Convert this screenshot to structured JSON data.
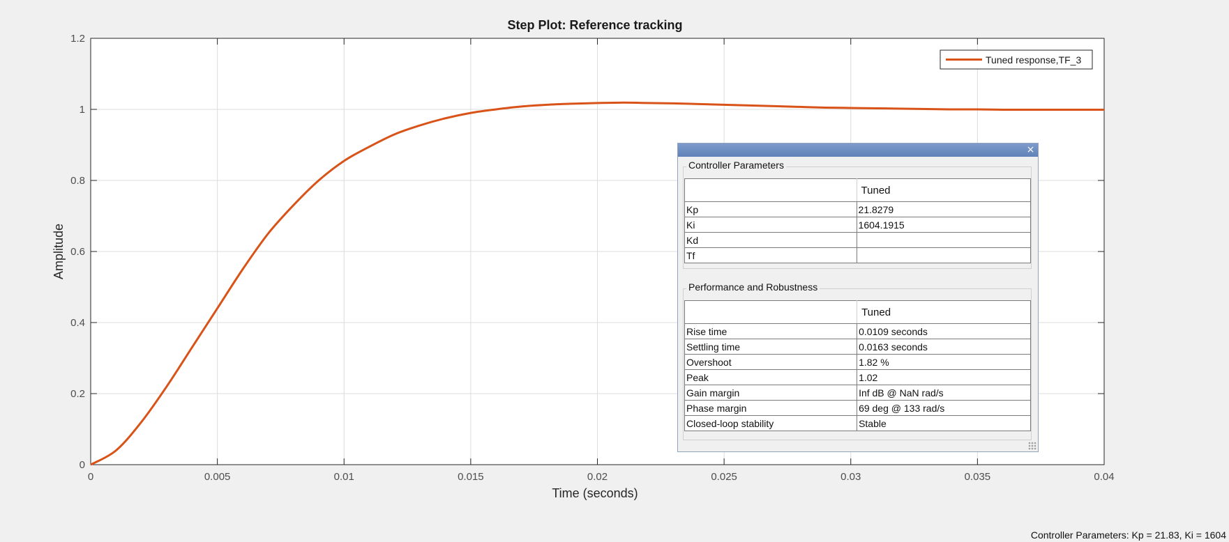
{
  "chart_data": {
    "type": "line",
    "title": "Step Plot: Reference tracking",
    "xlabel": "Time (seconds)",
    "ylabel": "Amplitude",
    "xlim": [
      0,
      0.04
    ],
    "ylim": [
      0,
      1.2
    ],
    "xticks": [
      0,
      0.005,
      0.01,
      0.015,
      0.02,
      0.025,
      0.03,
      0.035,
      0.04
    ],
    "xtick_labels": [
      "0",
      "0.005",
      "0.01",
      "0.015",
      "0.02",
      "0.025",
      "0.03",
      "0.035",
      "0.04"
    ],
    "yticks": [
      0,
      0.2,
      0.4,
      0.6,
      0.8,
      1,
      1.2
    ],
    "ytick_labels": [
      "0",
      "0.2",
      "0.4",
      "0.6",
      "0.8",
      "1",
      "1.2"
    ],
    "grid": true,
    "legend_position": "top-right",
    "series": [
      {
        "name": "Tuned response,TF_3",
        "color": "#d95319",
        "x": [
          0,
          0.001,
          0.002,
          0.003,
          0.004,
          0.005,
          0.006,
          0.007,
          0.008,
          0.009,
          0.01,
          0.011,
          0.012,
          0.013,
          0.014,
          0.015,
          0.016,
          0.017,
          0.018,
          0.019,
          0.02,
          0.021,
          0.022,
          0.023,
          0.024,
          0.025,
          0.026,
          0.027,
          0.028,
          0.029,
          0.03,
          0.031,
          0.032,
          0.033,
          0.034,
          0.035,
          0.036,
          0.037,
          0.038,
          0.039,
          0.04
        ],
        "y": [
          0,
          0.04,
          0.12,
          0.22,
          0.33,
          0.44,
          0.55,
          0.65,
          0.73,
          0.8,
          0.855,
          0.895,
          0.93,
          0.955,
          0.975,
          0.99,
          1.0,
          1.008,
          1.013,
          1.016,
          1.018,
          1.019,
          1.018,
          1.017,
          1.015,
          1.013,
          1.011,
          1.009,
          1.007,
          1.005,
          1.004,
          1.003,
          1.002,
          1.001,
          1.0,
          1.0,
          0.999,
          0.999,
          0.999,
          0.999,
          0.999
        ]
      }
    ]
  },
  "panel": {
    "close_glyph": "×",
    "controller_title": "Controller Parameters",
    "controller_header": "Tuned",
    "controller_rows": [
      {
        "name": "Kp",
        "value": "21.8279"
      },
      {
        "name": "Ki",
        "value": "1604.1915"
      },
      {
        "name": "Kd",
        "value": ""
      },
      {
        "name": "Tf",
        "value": ""
      }
    ],
    "performance_title": "Performance and Robustness",
    "performance_header": "Tuned",
    "performance_rows": [
      {
        "name": "Rise time",
        "value": "0.0109 seconds"
      },
      {
        "name": "Settling time",
        "value": "0.0163 seconds"
      },
      {
        "name": "Overshoot",
        "value": "1.82 %"
      },
      {
        "name": "Peak",
        "value": "1.02"
      },
      {
        "name": "Gain margin",
        "value": "Inf dB @ NaN rad/s"
      },
      {
        "name": "Phase margin",
        "value": "69 deg @ 133 rad/s"
      },
      {
        "name": "Closed-loop stability",
        "value": "Stable"
      }
    ]
  },
  "status_bar": {
    "text": "Controller Parameters: Kp = 21.83, Ki = 1604"
  }
}
